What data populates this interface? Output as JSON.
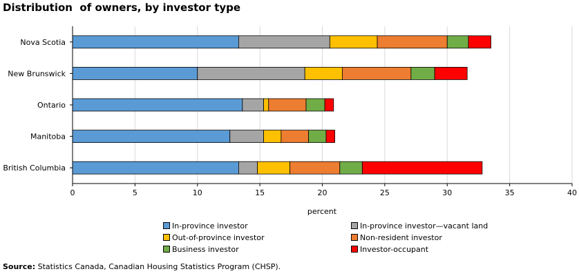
{
  "title": "Distribution  of owners, by investor type",
  "source": {
    "label": "Source:",
    "text": " Statistics Canada, Canadian Housing Statistics Program (CHSP)."
  },
  "chart_data": {
    "type": "bar",
    "orientation": "horizontal",
    "stacked": true,
    "xlabel": "percent",
    "xlim": [
      0,
      40
    ],
    "xticks": [
      0,
      5,
      10,
      15,
      20,
      25,
      30,
      35,
      40
    ],
    "grid": true,
    "legend_position": "bottom",
    "categories": [
      "Nova Scotia",
      "New Brunswick",
      "Ontario",
      "Manitoba",
      "British Columbia"
    ],
    "series": [
      {
        "name": "In-province investor",
        "color": "#5b9bd5",
        "values": [
          13.3,
          10.0,
          13.6,
          12.6,
          13.3
        ]
      },
      {
        "name": "In-province investor—vacant land",
        "color": "#a5a5a5",
        "values": [
          7.3,
          8.6,
          1.7,
          2.7,
          1.5
        ]
      },
      {
        "name": "Out-of-province investor",
        "color": "#ffc000",
        "values": [
          3.8,
          3.0,
          0.4,
          1.4,
          2.6
        ]
      },
      {
        "name": "Non-resident investor",
        "color": "#ed7d31",
        "values": [
          5.6,
          5.5,
          3.0,
          2.2,
          4.0
        ]
      },
      {
        "name": "Business investor",
        "color": "#70ad47",
        "values": [
          1.7,
          1.9,
          1.5,
          1.4,
          1.8
        ]
      },
      {
        "name": "Investor-occupant",
        "color": "#ff0000",
        "values": [
          1.8,
          2.6,
          0.7,
          0.7,
          9.6
        ]
      }
    ]
  }
}
